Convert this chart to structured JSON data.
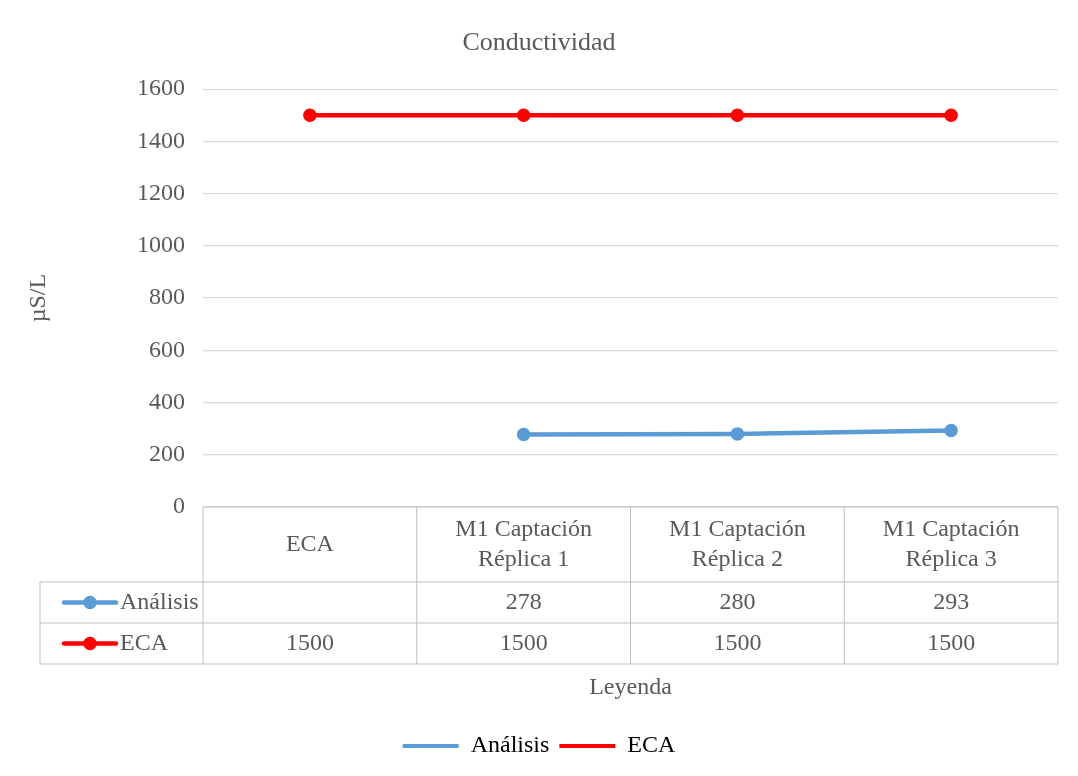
{
  "chart_data": {
    "type": "line",
    "title": "Conductividad",
    "xlabel": "Leyenda",
    "ylabel": "µS/L",
    "categories": [
      "ECA",
      "M1 Captación Réplica 1",
      "M1 Captación Réplica 2",
      "M1 Captación Réplica 3"
    ],
    "series": [
      {
        "name": "Análisis",
        "color": "#5b9bd5",
        "values": [
          null,
          278,
          280,
          293
        ]
      },
      {
        "name": "ECA",
        "color": "#ff0000",
        "values": [
          1500,
          1500,
          1500,
          1500
        ]
      }
    ],
    "ylim": [
      0,
      1600
    ],
    "yticks": [
      0,
      200,
      400,
      600,
      800,
      1000,
      1200,
      1400,
      1600
    ],
    "grid": "y",
    "legend": "bottom",
    "marker": "circle",
    "line_style": "solid",
    "data_labels": true
  }
}
